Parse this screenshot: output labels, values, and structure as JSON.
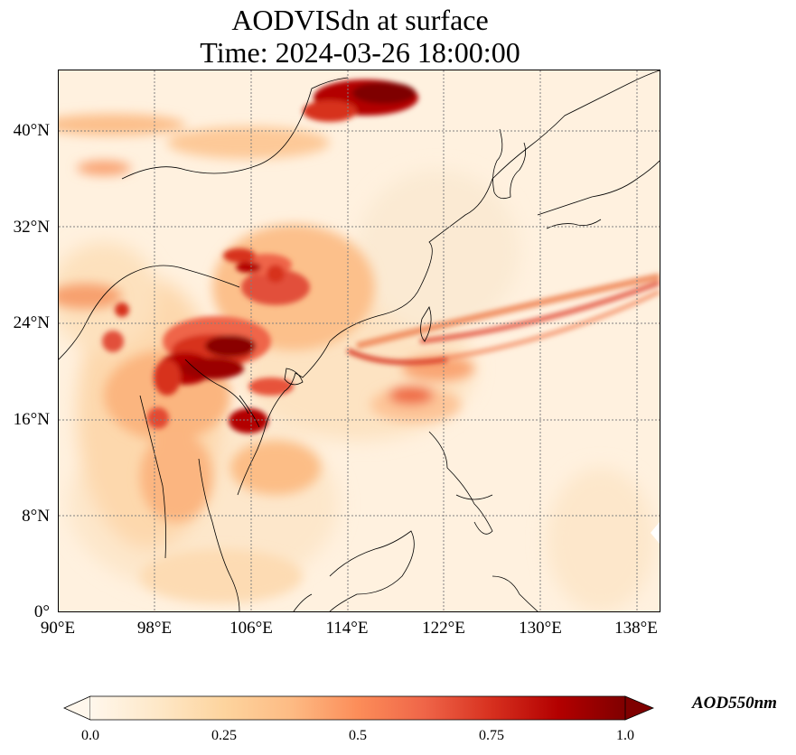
{
  "title": {
    "line1": "AODVISdn at surface",
    "line2": "Time: 2024-03-26 18:00:00"
  },
  "map": {
    "region": "East and Southeast Asia",
    "lon_range": [
      90,
      140
    ],
    "lat_range": [
      0,
      45
    ],
    "gridlines": "dotted",
    "colormap": "OrRd",
    "colors": {
      "low": "#fff7ec",
      "mid": "#fc8d59",
      "high": "#7f0000",
      "coastline": "#000000",
      "grid": "#808080"
    },
    "lat_ticks": [
      "0°",
      "8°N",
      "16°N",
      "24°N",
      "32°N",
      "40°N"
    ],
    "lon_ticks": [
      "90°E",
      "98°E",
      "106°E",
      "114°E",
      "122°E",
      "130°E",
      "138°E"
    ]
  },
  "colorbar": {
    "label": "AOD550nm",
    "ticks": [
      "0.0",
      "0.25",
      "0.5",
      "0.75",
      "1.0"
    ],
    "range": [
      0.0,
      1.0
    ],
    "extend": "both"
  }
}
